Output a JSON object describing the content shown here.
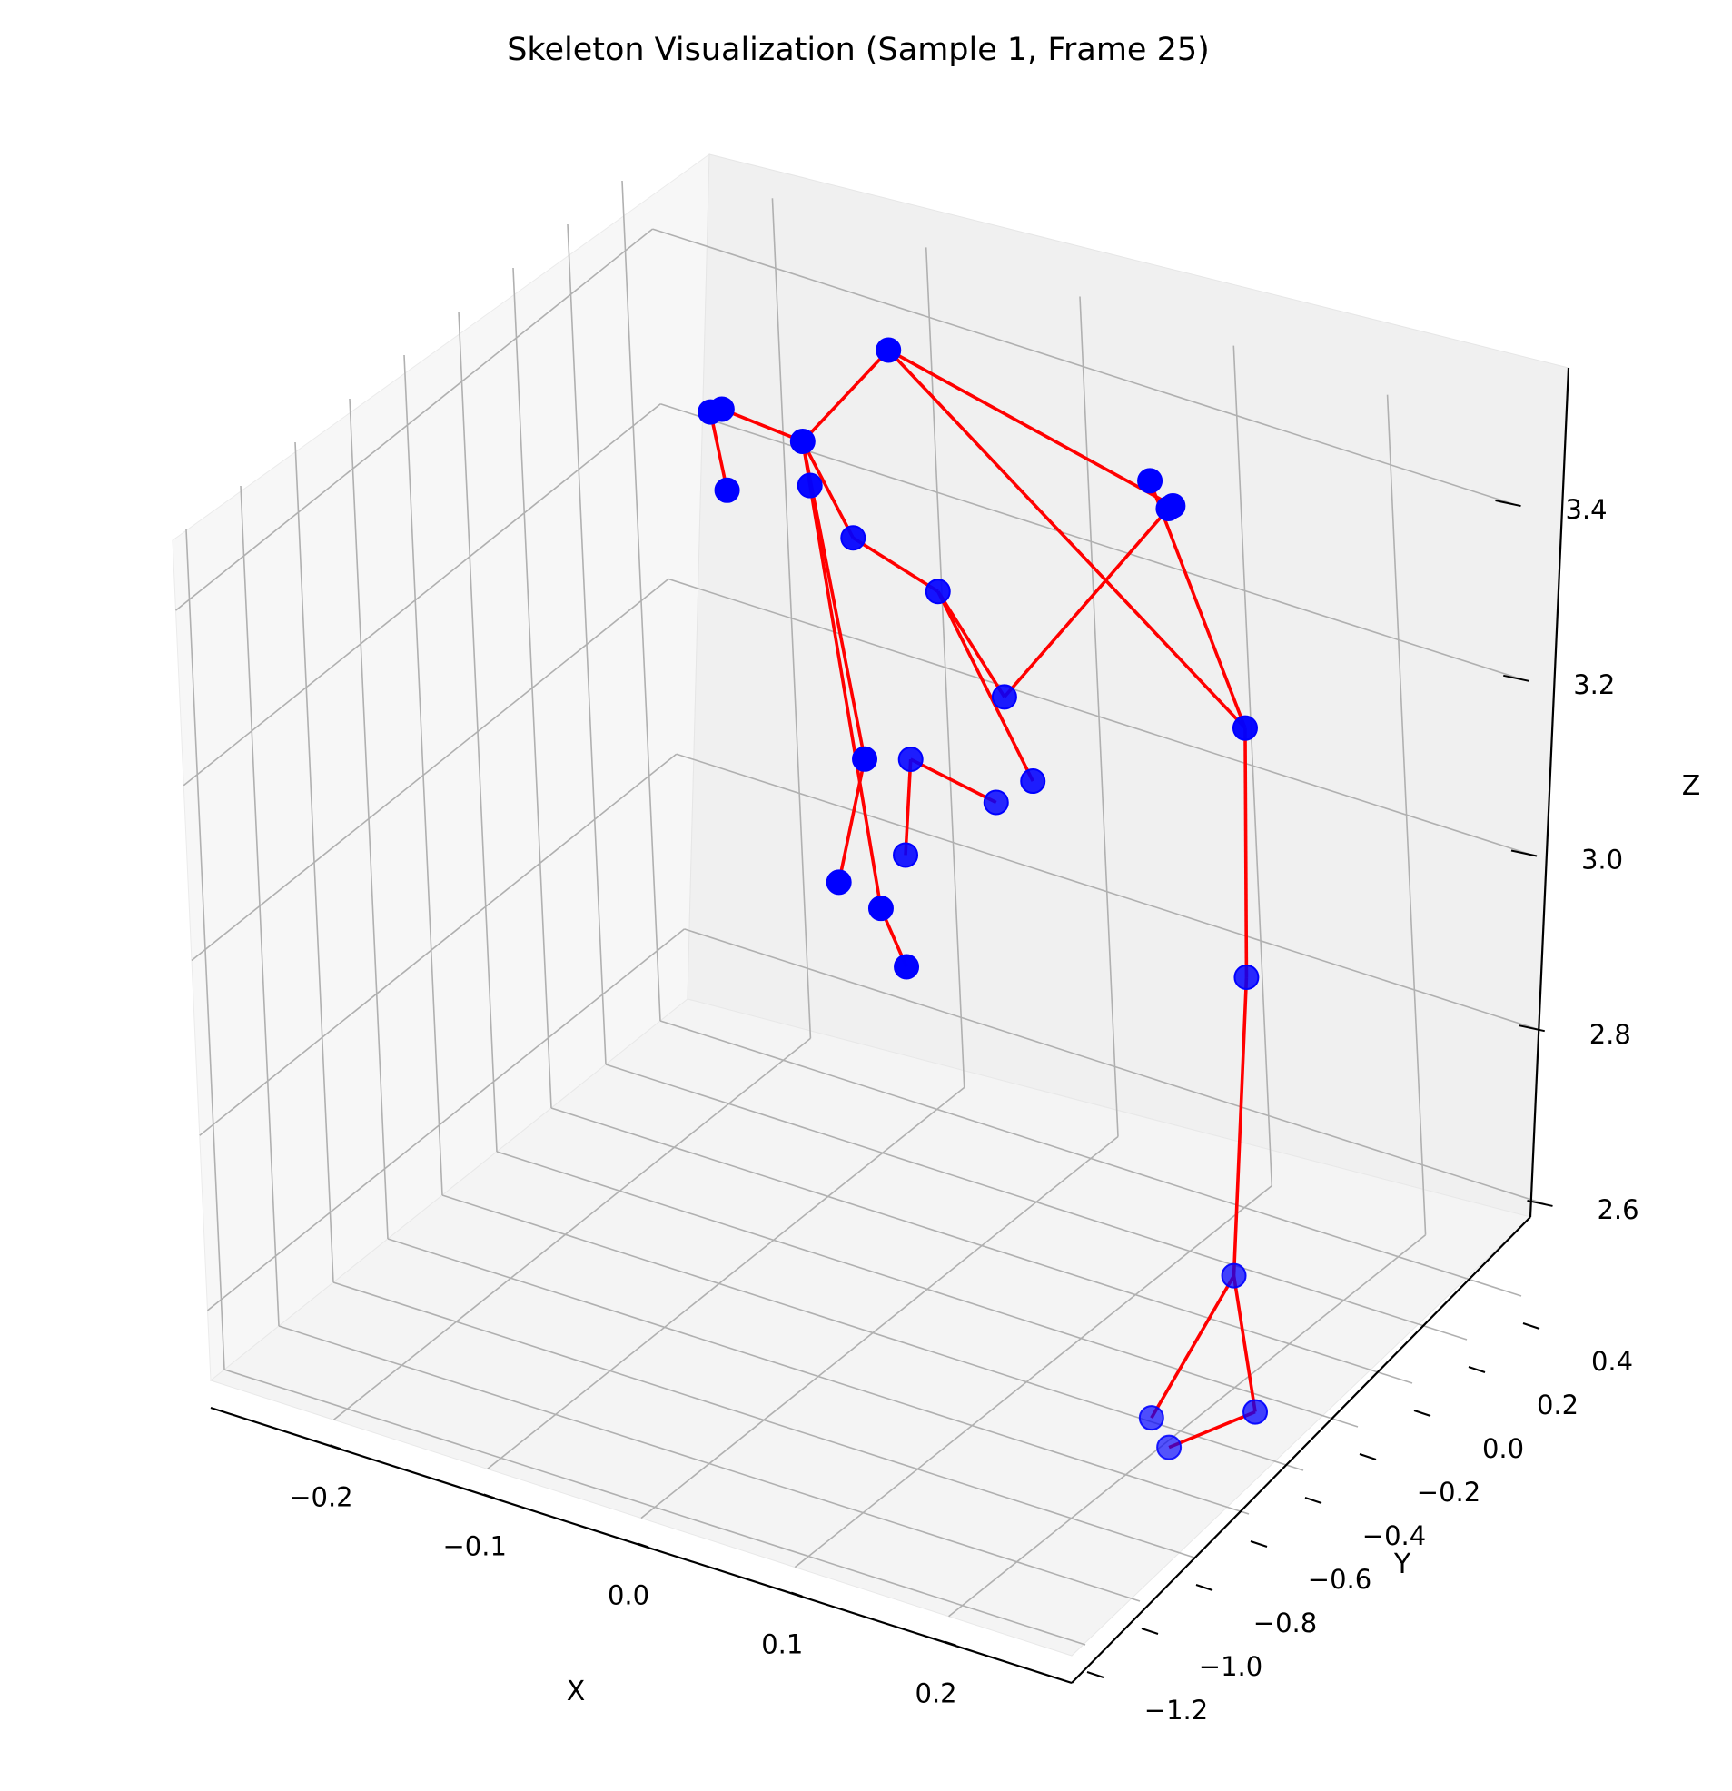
{
  "chart_data": {
    "type": "scatter",
    "projection": "3d",
    "title": "Skeleton Visualization (Sample 1, Frame 25)",
    "xlabel": "X",
    "ylabel": "Y",
    "zlabel": "Z",
    "x_ticks": [
      "−0.2",
      "−0.1",
      "0.0",
      "0.1",
      "0.2"
    ],
    "y_ticks": [
      "−1.2",
      "−1.0",
      "−0.8",
      "−0.6",
      "−0.4",
      "−0.2",
      "0.0",
      "0.2",
      "0.4"
    ],
    "z_ticks": [
      "2.6",
      "2.8",
      "3.0",
      "3.2",
      "3.4"
    ],
    "xlim": [
      -0.28,
      0.28
    ],
    "ylim": [
      -1.25,
      0.5
    ],
    "zlim": [
      2.52,
      3.48
    ],
    "grid": true,
    "colors": {
      "joints": "#0000ff",
      "bones": "#ff0000",
      "pane_left": "#f7f7f7",
      "pane_back": "#f0f0f0",
      "pane_floor": "#f4f4f4",
      "grid": "#b0b0b0"
    },
    "joints": [
      {
        "x": -0.22,
        "y": 0.4,
        "z": 3.16
      },
      {
        "x": -0.21,
        "y": 0.3,
        "z": 3.28
      },
      {
        "x": -0.18,
        "y": 0.18,
        "z": 3.33
      },
      {
        "x": -0.1,
        "y": 0.05,
        "z": 3.32
      },
      {
        "x": -0.06,
        "y": -0.02,
        "z": 3.3
      },
      {
        "x": 0.0,
        "y": -0.05,
        "z": 3.28
      },
      {
        "x": 0.05,
        "y": -0.1,
        "z": 3.2
      },
      {
        "x": 0.07,
        "y": -0.12,
        "z": 3.12
      },
      {
        "x": 0.06,
        "y": -0.2,
        "z": 3.11
      },
      {
        "x": -0.01,
        "y": -0.12,
        "z": 3.1
      },
      {
        "x": -0.02,
        "y": -0.1,
        "z": 2.98
      },
      {
        "x": -0.1,
        "y": 0.35,
        "z": 3.4
      },
      {
        "x": 0.05,
        "y": 0.45,
        "z": 3.31
      },
      {
        "x": 0.07,
        "y": 0.42,
        "z": 3.3
      },
      {
        "x": 0.08,
        "y": 0.35,
        "z": 3.32
      },
      {
        "x": 0.18,
        "y": 0.05,
        "z": 3.2
      },
      {
        "x": 0.22,
        "y": -0.2,
        "z": 3.0
      },
      {
        "x": 0.24,
        "y": -0.4,
        "z": 2.72
      },
      {
        "x": 0.2,
        "y": -0.5,
        "z": 2.56
      },
      {
        "x": 0.22,
        "y": -0.55,
        "z": 2.55
      },
      {
        "x": 0.25,
        "y": -0.4,
        "z": 2.57
      },
      {
        "x": -0.15,
        "y": 0.3,
        "z": 3.28
      },
      {
        "x": -0.1,
        "y": 0.2,
        "z": 2.97
      },
      {
        "x": -0.13,
        "y": 0.25,
        "z": 2.8
      },
      {
        "x": -0.09,
        "y": 0.18,
        "z": 2.81
      },
      {
        "x": -0.06,
        "y": 0.1,
        "z": 2.78
      }
    ],
    "bones": [
      [
        0,
        1
      ],
      [
        1,
        2
      ],
      [
        2,
        21
      ],
      [
        21,
        4
      ],
      [
        4,
        5
      ],
      [
        5,
        6
      ],
      [
        6,
        14
      ],
      [
        5,
        7
      ],
      [
        8,
        9
      ],
      [
        9,
        10
      ],
      [
        21,
        11
      ],
      [
        11,
        13
      ],
      [
        12,
        15
      ],
      [
        11,
        15
      ],
      [
        15,
        16
      ],
      [
        16,
        17
      ],
      [
        17,
        18
      ],
      [
        17,
        20
      ],
      [
        20,
        19
      ],
      [
        21,
        22
      ],
      [
        22,
        23
      ],
      [
        21,
        24
      ],
      [
        24,
        25
      ]
    ]
  }
}
